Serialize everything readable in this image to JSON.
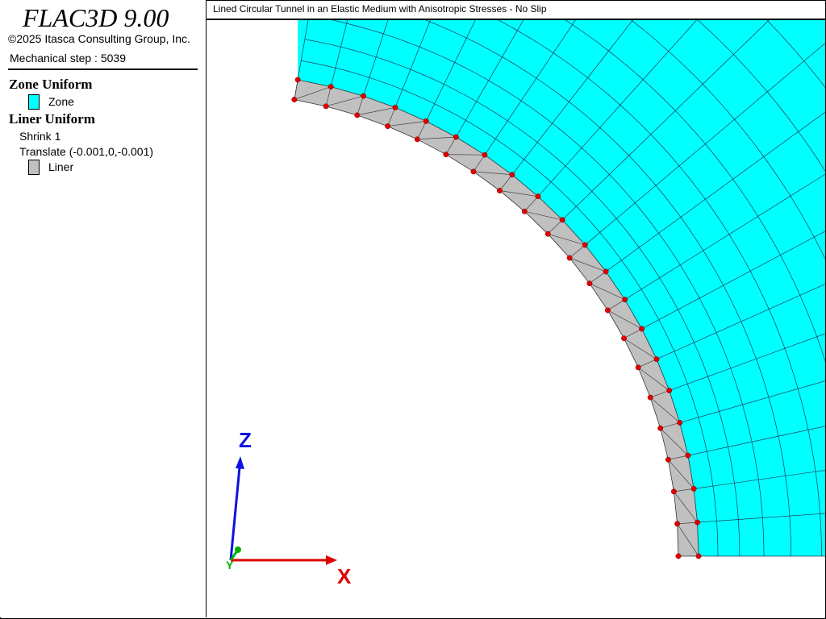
{
  "app": {
    "title": "FLAC3D 9.00",
    "copyright": "©2025 Itasca Consulting Group, Inc.",
    "step_label": "Mechanical step : 5039"
  },
  "legend": {
    "zone_heading": "Zone Uniform",
    "zone_item": "Zone",
    "zone_color": "#00ffff",
    "liner_heading": "Liner Uniform",
    "shrink": "Shrink 1",
    "translate": "Translate (-0.001,0,-0.001)",
    "liner_item": "Liner",
    "liner_color": "#c0c0c0"
  },
  "plot": {
    "title": "Lined Circular Tunnel in an Elastic Medium with Anisotropic Stresses - No Slip",
    "node_color": "#e00000"
  },
  "axes": {
    "x_label": "X",
    "y_label": "Y",
    "z_label": "Z",
    "x_color": "#e00000",
    "y_color": "#00b000",
    "z_color": "#1010e0"
  }
}
